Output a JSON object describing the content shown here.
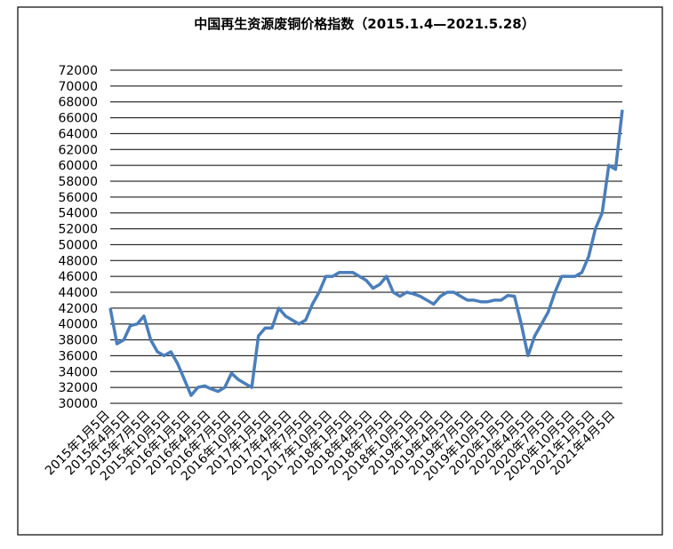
{
  "chart_data": {
    "type": "line",
    "title": "中国再生资源废铜价格指数（2015.1.4—2021.5.28）",
    "categories": [
      "2015年1月5日",
      null,
      null,
      "2015年4月5日",
      null,
      null,
      "2015年7月5日",
      null,
      null,
      "2015年10月5日",
      null,
      null,
      "2016年1月5日",
      null,
      null,
      "2016年4月5日",
      null,
      null,
      "2016年7月5日",
      null,
      null,
      "2016年10月5日",
      null,
      null,
      "2017年1月5日",
      null,
      null,
      "2017年4月5日",
      null,
      null,
      "2017年7月5日",
      null,
      null,
      "2017年10月5日",
      null,
      null,
      "2018年1月5日",
      null,
      null,
      "2018年4月5日",
      null,
      null,
      "2018年7月5日",
      null,
      null,
      "2018年10月5日",
      null,
      null,
      "2019年1月5日",
      null,
      null,
      "2019年4月5日",
      null,
      null,
      "2019年7月5日",
      null,
      null,
      "2019年10月5日",
      null,
      null,
      "2020年1月5日",
      null,
      null,
      "2020年4月5日",
      null,
      null,
      "2020年7月5日",
      null,
      null,
      "2020年10月5日",
      null,
      null,
      "2021年1月5日",
      null,
      null,
      "2021年4月5日",
      null
    ],
    "series": [
      {
        "color": "#4a7ebb",
        "values": [
          42000,
          37500,
          38000,
          39800,
          40000,
          41000,
          38000,
          36500,
          36000,
          36500,
          35000,
          33000,
          31000,
          32000,
          32200,
          31800,
          31500,
          32000,
          33800,
          33000,
          32500,
          32000,
          38500,
          39500,
          39500,
          42000,
          41000,
          40500,
          40000,
          40500,
          42500,
          44000,
          46000,
          46000,
          46500,
          46500,
          46500,
          46000,
          45500,
          44500,
          45000,
          46000,
          44000,
          43500,
          44000,
          43800,
          43500,
          43000,
          42500,
          43500,
          44000,
          44000,
          43500,
          43000,
          43000,
          42800,
          42800,
          43000,
          43000,
          43600,
          43500,
          40000,
          36000,
          38500,
          40000,
          41500,
          44000,
          46000,
          46000,
          46000,
          46500,
          48500,
          52000,
          54000,
          60000,
          59500,
          67000
        ]
      }
    ],
    "ylim": [
      30000,
      72000
    ],
    "yticks": [
      30000,
      32000,
      34000,
      36000,
      38000,
      40000,
      42000,
      44000,
      46000,
      48000,
      50000,
      52000,
      54000,
      56000,
      58000,
      60000,
      62000,
      64000,
      66000,
      68000,
      70000,
      72000
    ],
    "grid": true
  }
}
